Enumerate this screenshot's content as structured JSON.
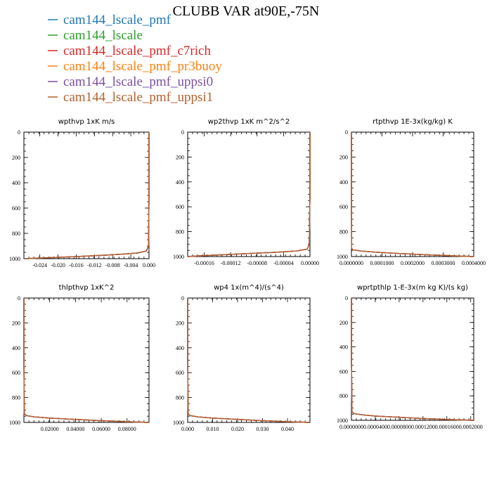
{
  "chart_data": {
    "type": "line",
    "title": "CLUBB VAR at90E,-75N",
    "legend": {
      "placement": "top-left",
      "entries": [
        {
          "name": "cam144_lscale_pmf",
          "color": "#1f77b4"
        },
        {
          "name": "cam144_lscale",
          "color": "#2ca02c"
        },
        {
          "name": "cam144_lscale_pmf_c7rich",
          "color": "#d62728"
        },
        {
          "name": "cam144_lscale_pmf_pr3buoy",
          "color": "#ff7f0e"
        },
        {
          "name": "cam144_lscale_pmf_uppsi0",
          "color": "#7b4ea3"
        },
        {
          "name": "cam144_lscale_pmf_uppsi1",
          "color": "#b5602e"
        }
      ]
    },
    "panels": [
      {
        "title": "wpthvp   1xK m/s",
        "xlim": [
          -0.0275,
          0.0
        ],
        "ylim": [
          1000,
          0
        ],
        "xticks": [
          -0.024,
          -0.02,
          -0.016,
          -0.012,
          -0.008,
          -0.004,
          0.0
        ],
        "xticklabels": [
          "-0.024",
          "-0.020",
          "-0.016",
          "-0.012",
          "-0.008",
          "-0.004",
          "0.000"
        ],
        "yticks": [
          0,
          200,
          400,
          600,
          800,
          1000
        ],
        "profile": {
          "p": [
            0,
            500,
            900,
            940,
            955,
            965,
            975,
            985,
            995,
            1000
          ],
          "x": [
            0.0,
            0.0,
            -0.0001,
            -0.0006,
            -0.0025,
            -0.006,
            -0.011,
            -0.017,
            -0.024,
            -0.027
          ]
        },
        "offsets": [
          0,
          0,
          0,
          0,
          0,
          0
        ]
      },
      {
        "title": "wp2thvp   1xK m^2/s^2",
        "xlim": [
          -0.000185,
          0.0
        ],
        "ylim": [
          1000,
          0
        ],
        "xticks": [
          -0.00016,
          -0.00012,
          -8e-05,
          -4e-05,
          0.0
        ],
        "xticklabels": [
          "-0.00016",
          "-0.00012",
          "-0.00008",
          "-0.00004",
          "0.00000"
        ],
        "yticks": [
          0,
          200,
          400,
          600,
          800,
          1000
        ],
        "profile": {
          "p": [
            0,
            500,
            900,
            940,
            955,
            965,
            975,
            985,
            995,
            1000
          ],
          "x": [
            0.0,
            0.0,
            -1e-06,
            -4e-06,
            -2e-05,
            -5e-05,
            -9e-05,
            -0.00013,
            -0.00017,
            -0.000185
          ]
        },
        "offsets": [
          0,
          0,
          0,
          0,
          0,
          0
        ]
      },
      {
        "title": "rtpthvp   1E-3x(kg/kg) K",
        "xlim": [
          0.0,
          0.0004
        ],
        "ylim": [
          1000,
          0
        ],
        "xticks": [
          0.0,
          0.0001,
          0.0002,
          0.0003,
          0.0004
        ],
        "xticklabels": [
          "0.0000000",
          "0.0001000",
          "0.0002000",
          "0.0003000",
          "0.0004000"
        ],
        "yticks": [
          0,
          200,
          400,
          600,
          800,
          1000
        ],
        "profile": {
          "p": [
            0,
            500,
            930,
            945,
            955,
            965,
            975,
            985,
            995,
            1000
          ],
          "x": [
            0.0,
            0.0,
            5e-07,
            3e-06,
            3e-05,
            8e-05,
            0.00015,
            0.00024,
            0.00034,
            0.0004
          ]
        },
        "offsets": [
          0,
          0,
          0,
          0,
          0,
          0
        ]
      },
      {
        "title": "thlpthvp   1xK^2",
        "xlim": [
          0.0,
          0.097
        ],
        "ylim": [
          1000,
          0
        ],
        "xticks": [
          0.02,
          0.04,
          0.06,
          0.08
        ],
        "xticklabels": [
          "0.02000",
          "0.04000",
          "0.06000",
          "0.08000"
        ],
        "yticks": [
          0,
          200,
          400,
          600,
          800,
          1000
        ],
        "profile": {
          "p": [
            0,
            500,
            930,
            945,
            955,
            965,
            975,
            985,
            995,
            1000
          ],
          "x": [
            0.0,
            0.0,
            0.0003,
            0.002,
            0.008,
            0.02,
            0.038,
            0.058,
            0.082,
            0.097
          ]
        },
        "offsets": [
          0,
          0,
          0,
          0,
          0,
          0
        ]
      },
      {
        "title": "wp4   1x(m^4)/(s^4)",
        "xlim": [
          0.0,
          0.049
        ],
        "ylim": [
          1000,
          0
        ],
        "xticks": [
          0.0,
          0.01,
          0.02,
          0.03,
          0.04
        ],
        "xticklabels": [
          "0.000",
          "0.010",
          "0.020",
          "0.030",
          "0.040"
        ],
        "yticks": [
          0,
          200,
          400,
          600,
          800,
          1000
        ],
        "profile": {
          "p": [
            0,
            500,
            930,
            945,
            955,
            965,
            975,
            985,
            995,
            1000
          ],
          "x": [
            0.0,
            0.0,
            0.0002,
            0.001,
            0.004,
            0.01,
            0.019,
            0.029,
            0.041,
            0.049
          ]
        },
        "offsets": [
          0,
          0,
          0,
          0,
          0,
          0
        ]
      },
      {
        "title": "wprtpthlp   1-E-3x(m kg K)/(s kg)",
        "xlim": [
          0.0,
          0.000205
        ],
        "ylim": [
          1000,
          0
        ],
        "xticks": [
          0.0,
          4e-05,
          8e-05,
          0.00012,
          0.00016,
          0.0002
        ],
        "xticklabels": [
          "0.0000000",
          "0.0000400",
          "0.0000800",
          "0.0001200",
          "0.0001600",
          "0.0002000"
        ],
        "yticks": [
          0,
          200,
          400,
          600,
          800,
          1000
        ],
        "profile": {
          "p": [
            0,
            500,
            930,
            945,
            955,
            965,
            975,
            985,
            995,
            1000
          ],
          "x": [
            0.0,
            0.0,
            1e-06,
            4e-06,
            1.8e-05,
            4e-05,
            8e-05,
            0.00012,
            0.00017,
            0.000205
          ]
        },
        "offsets": [
          0,
          0,
          0,
          0,
          0,
          0
        ]
      }
    ]
  }
}
